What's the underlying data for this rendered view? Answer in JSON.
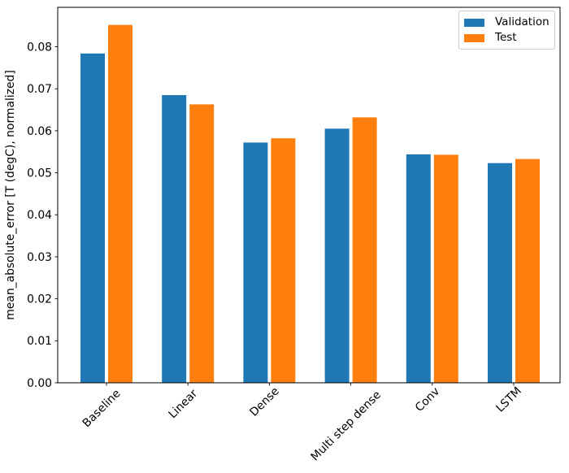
{
  "chart_data": {
    "type": "bar",
    "title": "",
    "xlabel": "",
    "ylabel": "mean_absolute_error [T (degC), normalized]",
    "categories": [
      "Baseline",
      "Linear",
      "Dense",
      "Multi step dense",
      "Conv",
      "LSTM"
    ],
    "series": [
      {
        "name": "Validation",
        "color": "#1f77b4",
        "values": [
          0.0784,
          0.0685,
          0.0572,
          0.0605,
          0.0544,
          0.0523
        ]
      },
      {
        "name": "Test",
        "color": "#ff7f0e",
        "values": [
          0.0852,
          0.0663,
          0.0582,
          0.0632,
          0.0543,
          0.0533
        ]
      }
    ],
    "ylim": [
      0,
      0.0894
    ],
    "ytick_labels": [
      "0.00",
      "0.01",
      "0.02",
      "0.03",
      "0.04",
      "0.05",
      "0.06",
      "0.07",
      "0.08"
    ],
    "x_tick_rotation_deg": 45,
    "grid": false,
    "legend": {
      "position": "upper right",
      "entries": [
        "Validation",
        "Test"
      ]
    }
  }
}
